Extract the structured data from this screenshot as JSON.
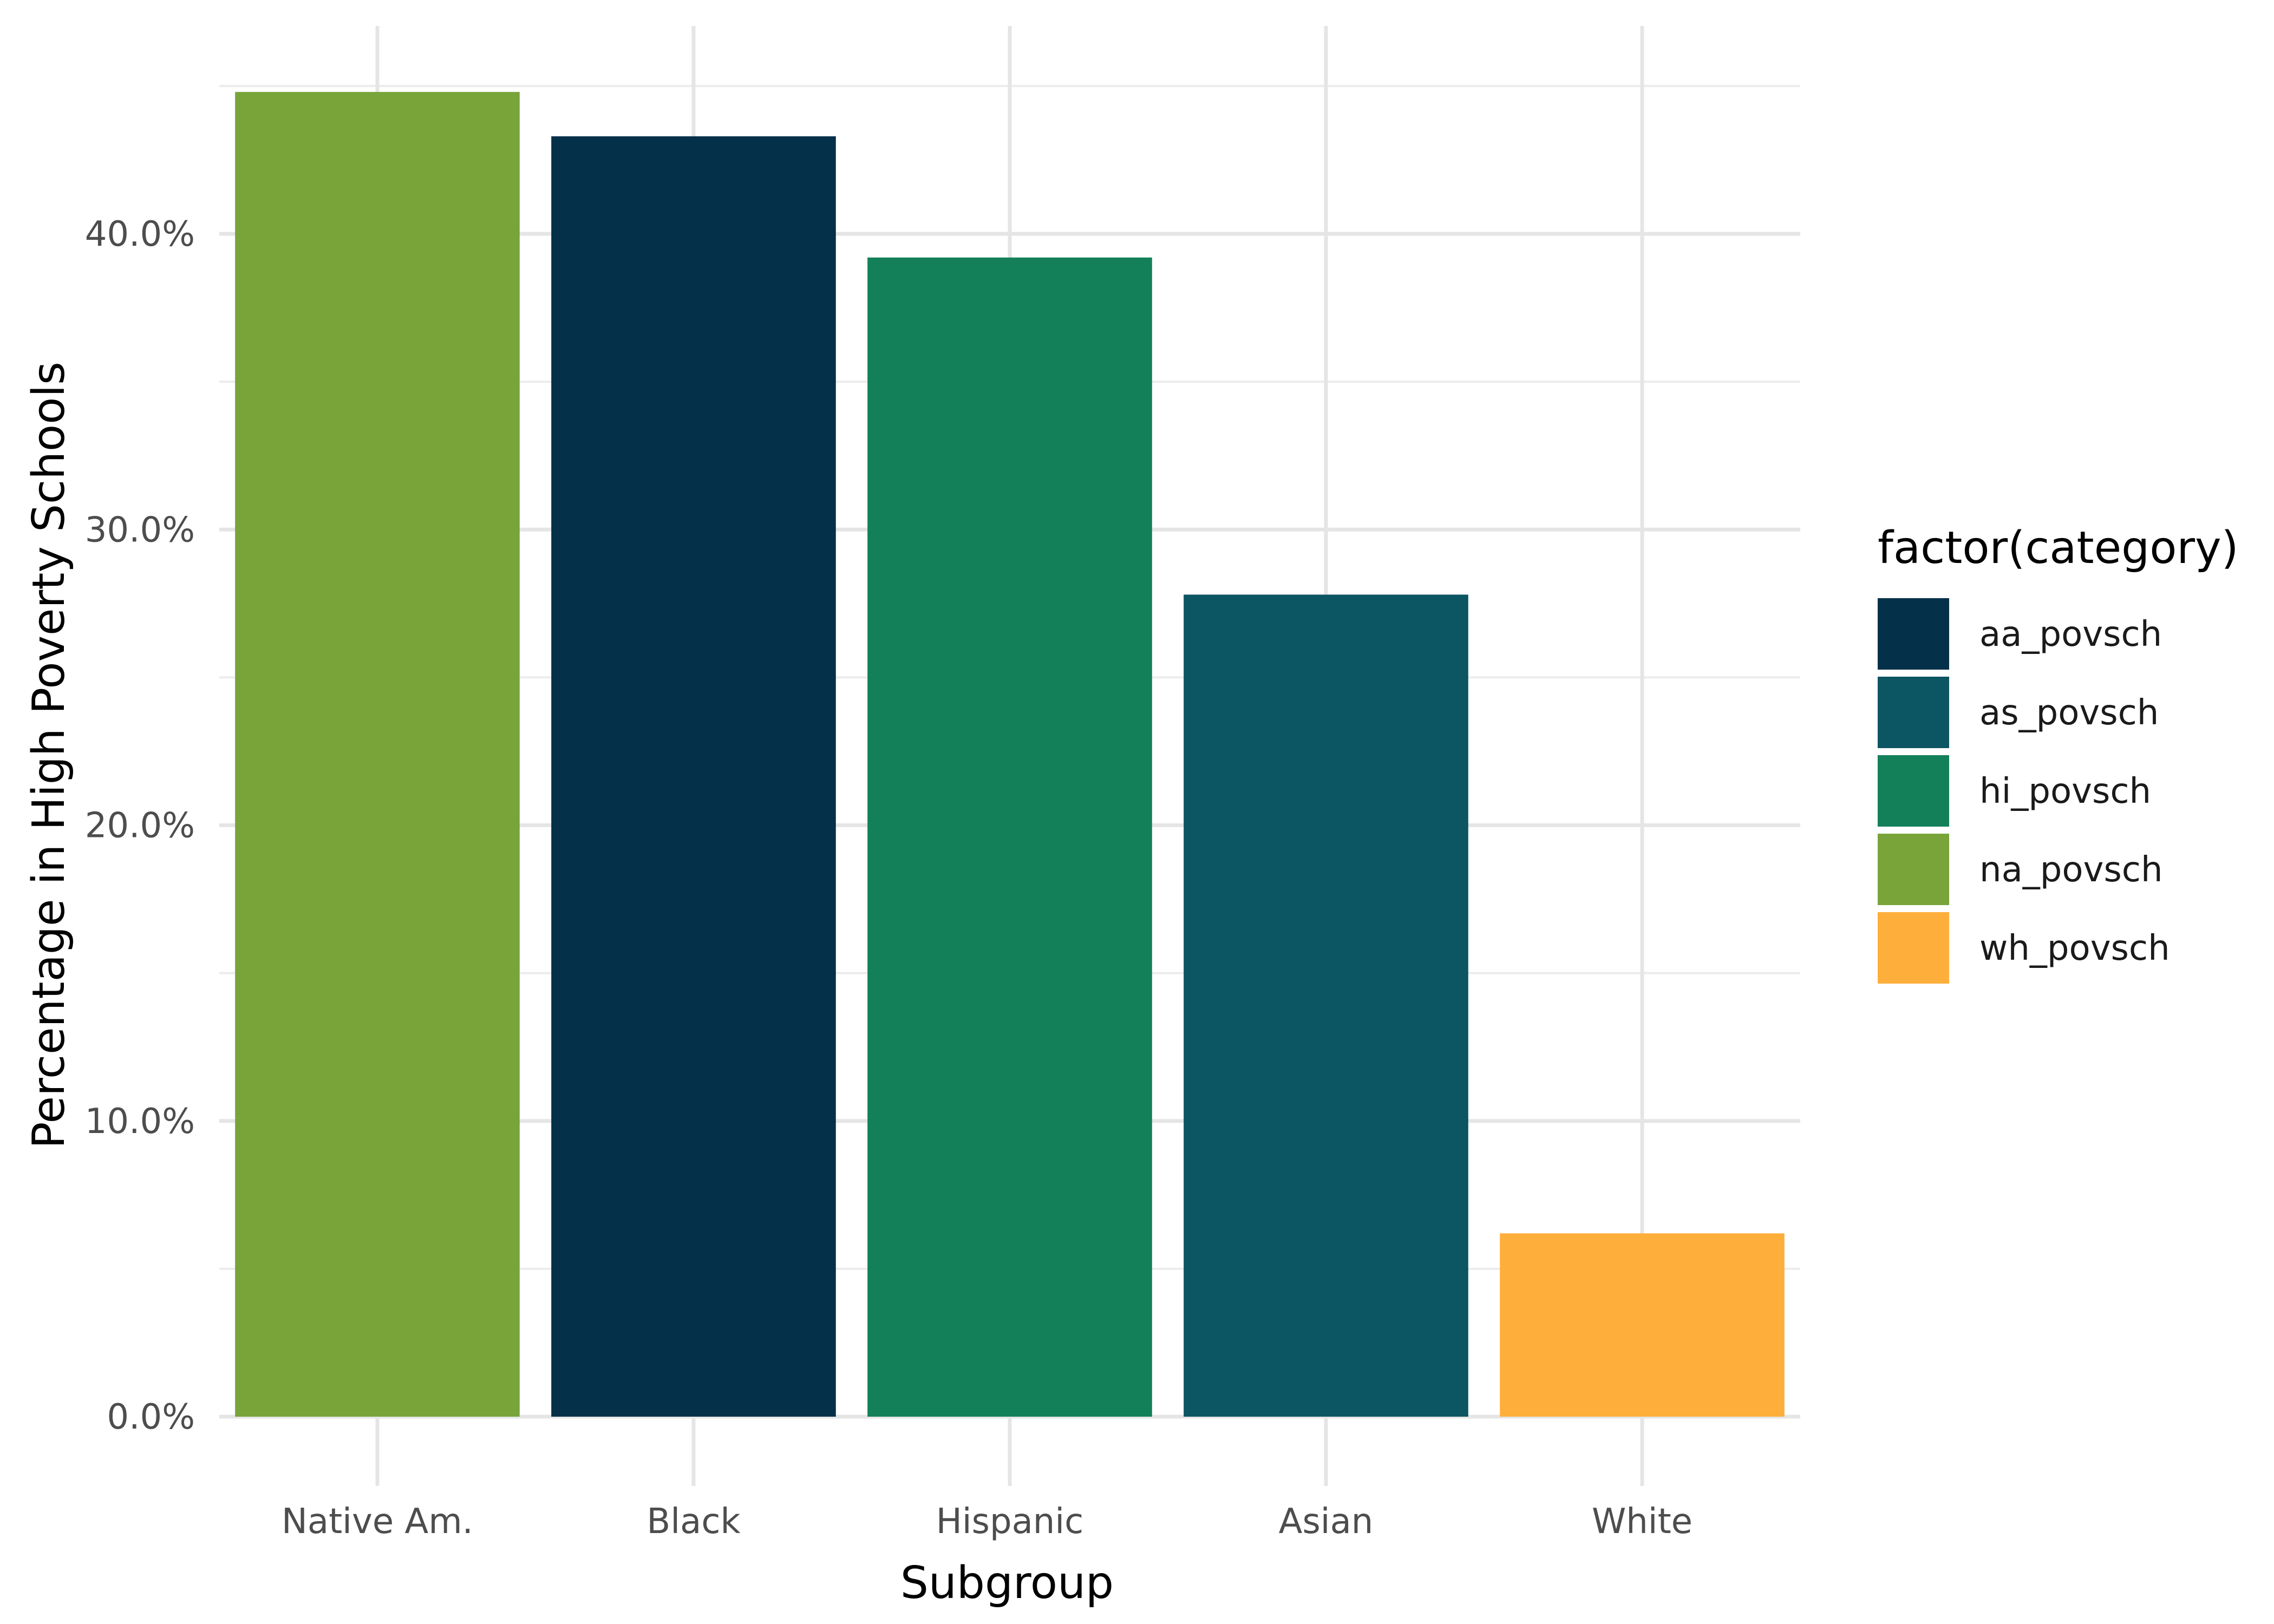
{
  "chart_data": {
    "type": "bar",
    "categories": [
      "Native Am.",
      "Black",
      "Hispanic",
      "Asian",
      "White"
    ],
    "values": [
      0.448,
      0.433,
      0.392,
      0.278,
      0.062
    ],
    "series_keys": [
      "na_povsch",
      "aa_povsch",
      "hi_povsch",
      "as_povsch",
      "wh_povsch"
    ],
    "xlabel": "Subgroup",
    "ylabel": "Percentage in High Poverty Schools",
    "ylim": [
      0,
      0.47
    ],
    "y_ticks": [
      0,
      0.1,
      0.2,
      0.3,
      0.4
    ],
    "y_tick_labels": [
      "0.0%",
      "10.0%",
      "20.0%",
      "30.0%",
      "40.0%"
    ],
    "grid": true,
    "legend": {
      "title": "factor(category)",
      "placement": "right",
      "entries": [
        {
          "label": "aa_povsch",
          "color": "#053049"
        },
        {
          "label": "as_povsch",
          "color": "#0c5563"
        },
        {
          "label": "hi_povsch",
          "color": "#138059"
        },
        {
          "label": "na_povsch",
          "color": "#78a43a"
        },
        {
          "label": "wh_povsch",
          "color": "#feae3b"
        }
      ]
    }
  }
}
